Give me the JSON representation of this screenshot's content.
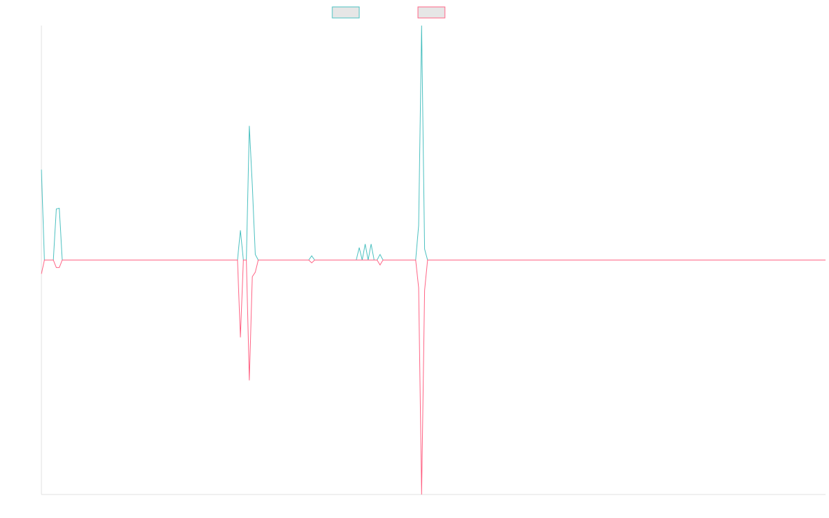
{
  "chart_data": {
    "type": "line",
    "xlim": [
      0,
      264
    ],
    "ylim": [
      -100,
      100
    ],
    "series": [
      {
        "color": "#4bc0c0",
        "x": [
          0,
          1,
          4,
          5,
          6,
          7,
          66,
          67,
          68,
          69,
          70,
          71,
          72,
          73,
          90,
          91,
          92,
          106,
          107,
          108,
          109,
          110,
          111,
          112,
          113,
          114,
          115,
          126,
          127,
          128,
          129,
          130,
          264
        ],
        "values": [
          38.6,
          0,
          0,
          21.8,
          22.1,
          0,
          0,
          12.7,
          0,
          0,
          57.2,
          31.9,
          2.4,
          0,
          0,
          1.8,
          0,
          0,
          5.3,
          0,
          6.8,
          0,
          6.8,
          0,
          0,
          2.4,
          0,
          0,
          14.7,
          100,
          4.7,
          0,
          0
        ]
      },
      {
        "color": "#ff6384",
        "x": [
          0,
          1,
          4,
          5,
          6,
          7,
          66,
          67,
          68,
          69,
          70,
          71,
          72,
          73,
          90,
          91,
          92,
          113,
          114,
          115,
          126,
          127,
          128,
          129,
          130,
          264
        ],
        "values": [
          -5.9,
          0,
          0,
          -3.2,
          -3.2,
          0,
          0,
          -33,
          0,
          0,
          -51.3,
          -7.1,
          -5.2,
          0,
          0,
          -1.2,
          0,
          0,
          -2.1,
          0,
          0,
          -11.8,
          -100,
          -13,
          0,
          0
        ]
      }
    ]
  }
}
